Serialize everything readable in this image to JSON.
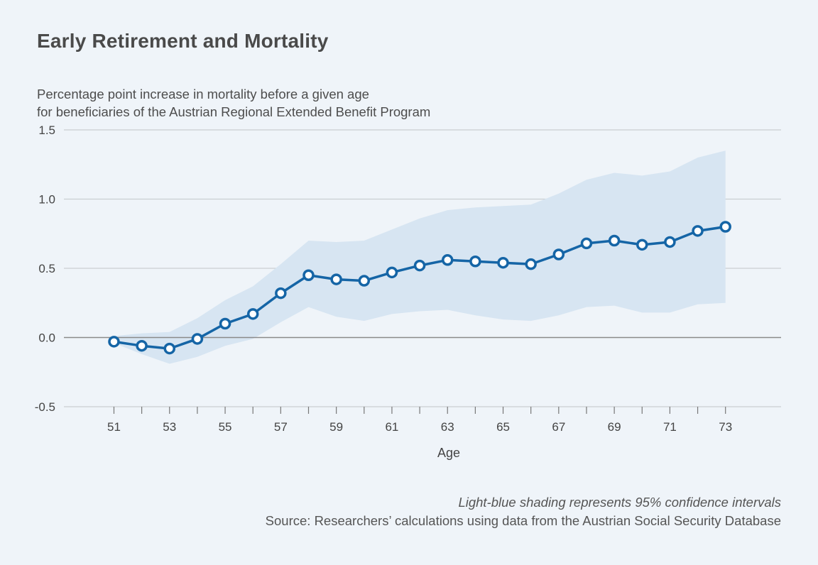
{
  "header": {
    "title": "Early Retirement and Mortality",
    "subtitle_line1": "Percentage point increase in mortality before a given age",
    "subtitle_line2": "for beneficiaries of the Austrian Regional Extended Benefit Program"
  },
  "footer": {
    "note": "Light-blue shading represents 95% confidence intervals",
    "source": "Source: Researchers’ calculations using data from the Austrian Social Security Database"
  },
  "colors": {
    "line": "#1565a6",
    "band": "#d7e5f2",
    "grid": "#c9cdd1",
    "zero_line": "#8a8a8a",
    "marker_fill": "#ffffff"
  },
  "chart_data": {
    "type": "line",
    "title": "Early Retirement and Mortality",
    "xlabel": "Age",
    "ylabel": "Percentage point increase in mortality before a given age for beneficiaries of the Austrian Regional Extended Benefit Program",
    "xlim": [
      49.2,
      75
    ],
    "ylim": [
      -0.5,
      1.5
    ],
    "yticks": [
      "-0.5",
      "0.0",
      "0.5",
      "1.0",
      "1.5"
    ],
    "xtick_labels": [
      "51",
      "53",
      "55",
      "57",
      "59",
      "61",
      "63",
      "65",
      "67",
      "69",
      "71",
      "73"
    ],
    "grid": true,
    "x": [
      51,
      52,
      53,
      54,
      55,
      56,
      57,
      58,
      59,
      60,
      61,
      62,
      63,
      64,
      65,
      66,
      67,
      68,
      69,
      70,
      71,
      72,
      73
    ],
    "series": [
      {
        "values": [
          -0.03,
          -0.06,
          -0.08,
          -0.01,
          0.1,
          0.17,
          0.32,
          0.45,
          0.42,
          0.41,
          0.47,
          0.52,
          0.56,
          0.55,
          0.54,
          0.53,
          0.6,
          0.68,
          0.7,
          0.67,
          0.69,
          0.77,
          0.8
        ]
      }
    ],
    "ci_lower": [
      -0.04,
      -0.12,
      -0.19,
      -0.14,
      -0.06,
      -0.01,
      0.11,
      0.22,
      0.15,
      0.12,
      0.17,
      0.19,
      0.2,
      0.16,
      0.13,
      0.12,
      0.16,
      0.22,
      0.23,
      0.18,
      0.18,
      0.24,
      0.25
    ],
    "ci_upper": [
      0.01,
      0.03,
      0.04,
      0.14,
      0.27,
      0.37,
      0.53,
      0.7,
      0.69,
      0.7,
      0.78,
      0.86,
      0.92,
      0.94,
      0.95,
      0.96,
      1.04,
      1.14,
      1.19,
      1.17,
      1.2,
      1.3,
      1.35
    ]
  }
}
